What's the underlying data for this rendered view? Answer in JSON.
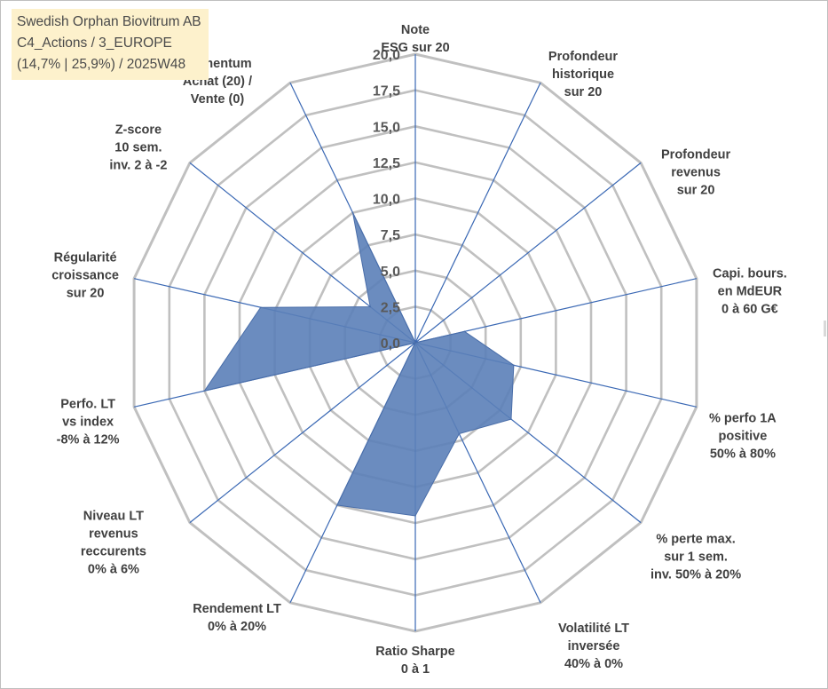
{
  "title_box": {
    "line1": "Swedish Orphan Biovitrum AB",
    "line2": "C4_Actions / 3_EUROPE",
    "line3": "(14,7% | 25,9%) / 2025W48"
  },
  "colors": {
    "grid": "#c0c0c0",
    "axis": "#3a68b4",
    "fill": "#5b7fb8",
    "fill_stroke": "#4a6ea9",
    "title_bg": "#fdf1cc"
  },
  "chart_data": {
    "type": "radar",
    "title": "",
    "rmin": 0,
    "rmax": 20,
    "tick_step": 2.5,
    "grid_levels": 8,
    "tick_labels": [
      "0,0",
      "2,5",
      "5,0",
      "7,5",
      "10,0",
      "12,5",
      "15,0",
      "17,5",
      "20,0"
    ],
    "categories": [
      [
        "Note",
        "ESG sur 20"
      ],
      [
        "Profondeur",
        "historique",
        "sur 20"
      ],
      [
        "Profondeur",
        "revenus",
        "sur 20"
      ],
      [
        "Capi. bours.",
        "en MdEUR",
        "0 à 60 G€"
      ],
      [
        "% perfo 1A",
        "positive",
        "50% à 80%"
      ],
      [
        "% perte max.",
        "sur 1 sem.",
        "inv. 50% à 20%"
      ],
      [
        "Volatilité LT",
        "inversée",
        "40% à 0%"
      ],
      [
        "Ratio Sharpe",
        "0 à 1"
      ],
      [
        "Rendement LT",
        "0% à 20%"
      ],
      [
        "Niveau LT",
        "revenus",
        "reccurents",
        "0% à 6%"
      ],
      [
        "Perfo. LT",
        "vs index",
        "-8% à 12%"
      ],
      [
        "Régularité",
        "croissance",
        "sur 20"
      ],
      [
        "Z-score",
        "10 sem.",
        "inv. 2 à -2"
      ],
      [
        "Momentum",
        "Achat (20) /",
        "Vente (0)"
      ]
    ],
    "series": [
      {
        "name": "Swedish Orphan Biovitrum AB",
        "values": [
          0,
          0,
          0,
          3.5,
          7,
          8.5,
          7,
          12,
          12.5,
          0,
          15,
          11,
          4,
          10
        ]
      }
    ]
  }
}
